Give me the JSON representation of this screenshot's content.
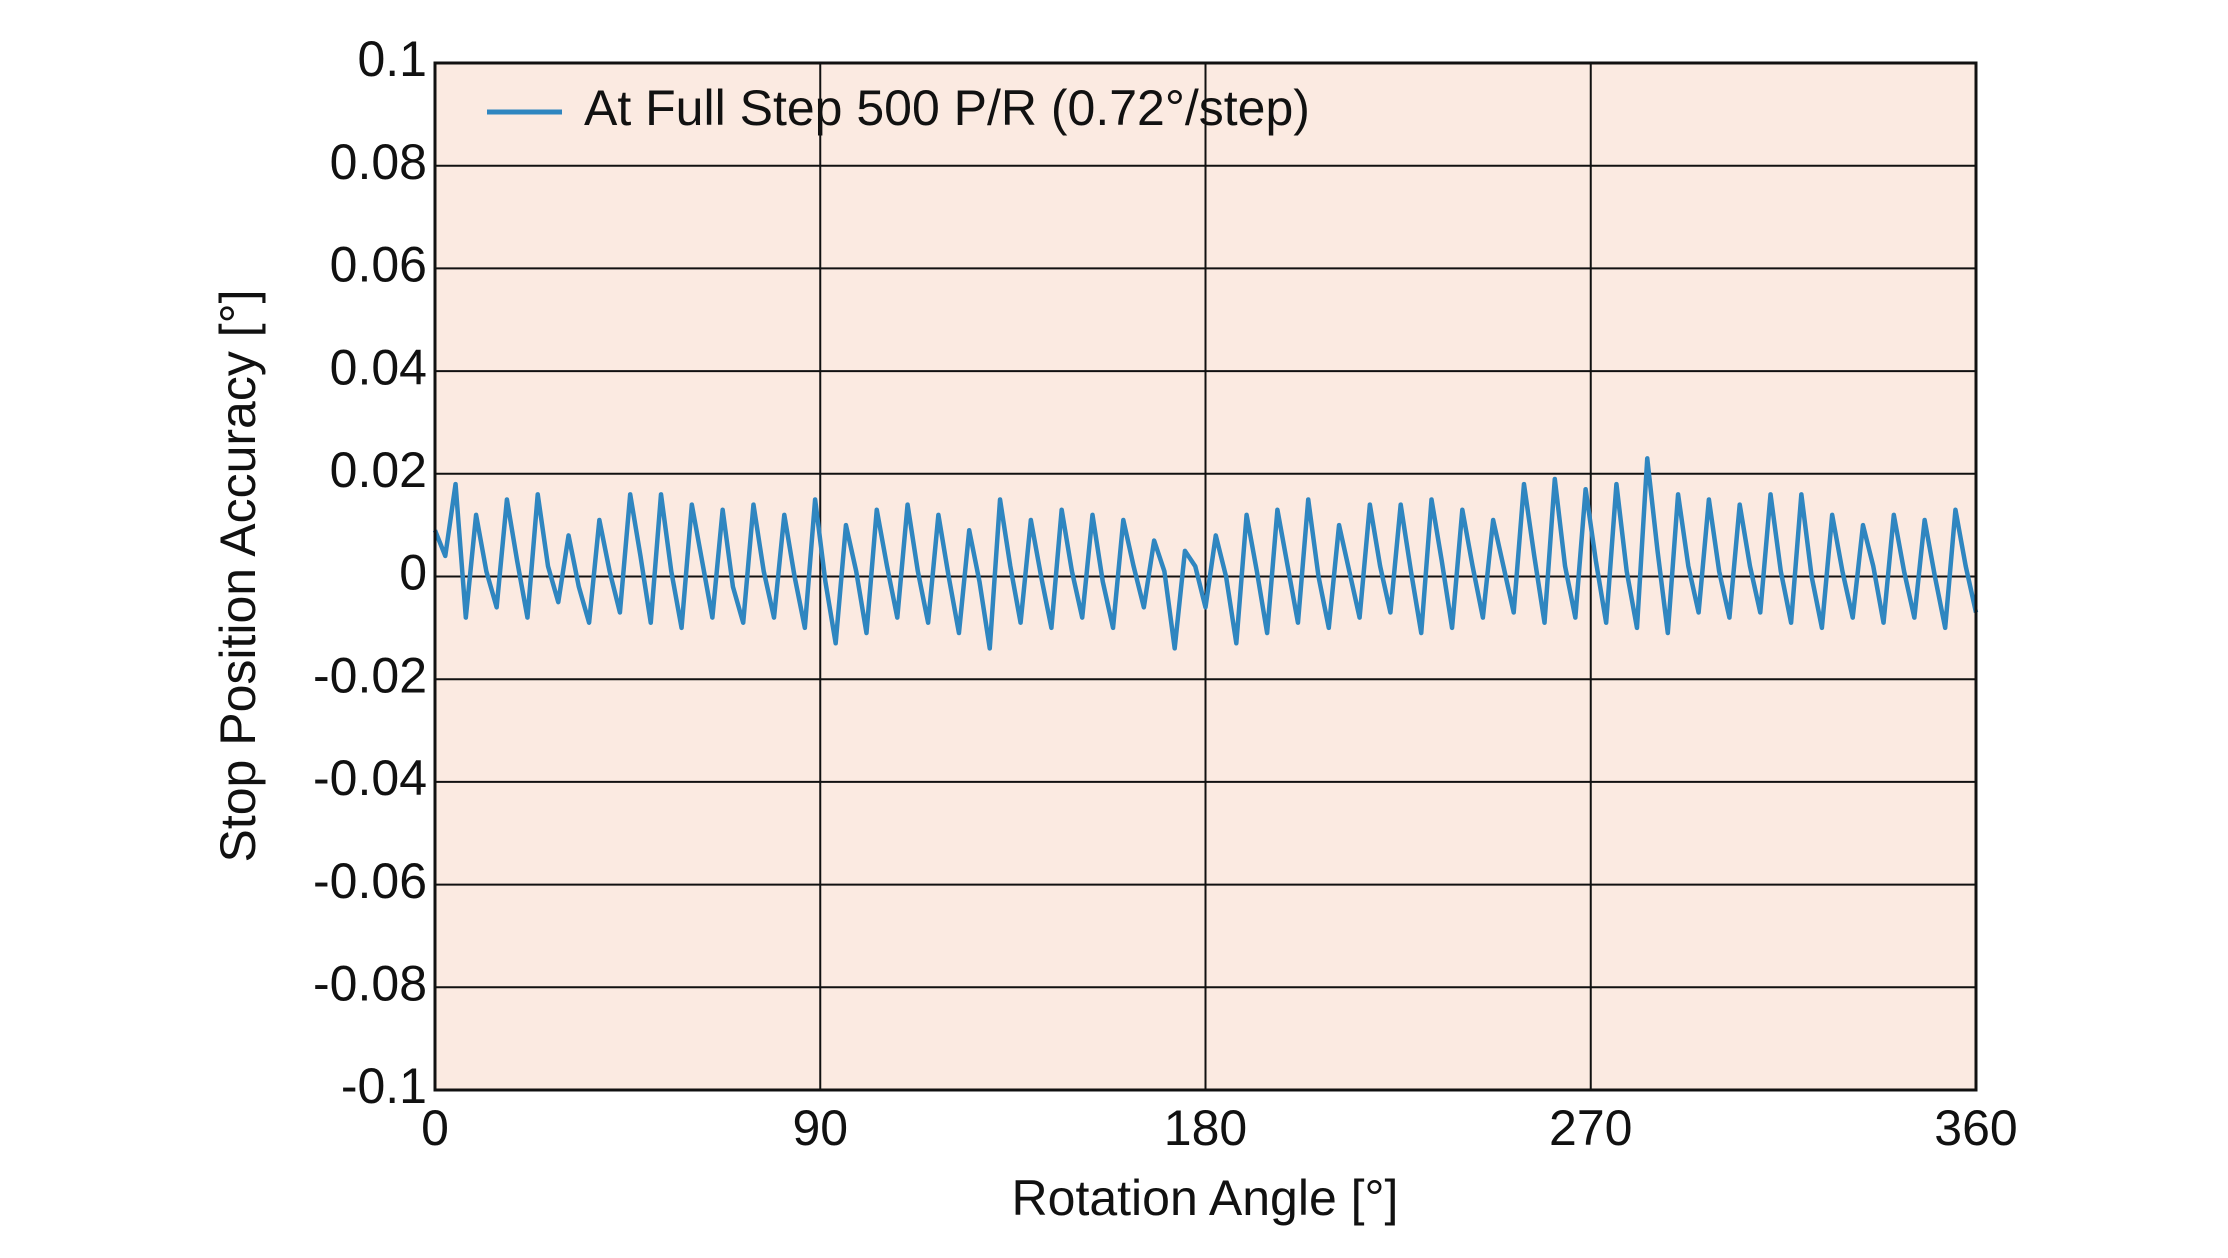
{
  "chart_data": {
    "type": "line",
    "xlabel": "Rotation Angle [°]",
    "ylabel": "Stop Position Accuracy [°]",
    "x": [
      0,
      2.4,
      4.8,
      7.2,
      9.6,
      12,
      14.4,
      16.8,
      19.2,
      21.6,
      24,
      26.4,
      28.8,
      31.2,
      33.6,
      36,
      38.4,
      40.8,
      43.2,
      45.6,
      48,
      50.4,
      52.8,
      55.2,
      57.6,
      60,
      62.4,
      64.8,
      67.2,
      69.6,
      72,
      74.4,
      76.8,
      79.2,
      81.6,
      84,
      86.4,
      88.8,
      91.2,
      93.6,
      96,
      98.4,
      100.8,
      103.2,
      105.6,
      108,
      110.4,
      112.8,
      115.2,
      117.6,
      120,
      122.4,
      124.8,
      127.2,
      129.6,
      132,
      134.4,
      136.8,
      139.2,
      141.6,
      144,
      146.4,
      148.8,
      151.2,
      153.6,
      156,
      158.4,
      160.8,
      163.2,
      165.6,
      168,
      170.4,
      172.8,
      175.2,
      177.6,
      180,
      182.4,
      184.8,
      187.2,
      189.6,
      192,
      194.4,
      196.8,
      199.2,
      201.6,
      204,
      206.4,
      208.8,
      211.2,
      213.6,
      216,
      218.4,
      220.8,
      223.2,
      225.6,
      228,
      230.4,
      232.8,
      235.2,
      237.6,
      240,
      242.4,
      244.8,
      247.2,
      249.6,
      252,
      254.4,
      256.8,
      259.2,
      261.6,
      264,
      266.4,
      268.8,
      271.2,
      273.6,
      276,
      278.4,
      280.8,
      283.2,
      285.6,
      288,
      290.4,
      292.8,
      295.2,
      297.6,
      300,
      302.4,
      304.8,
      307.2,
      309.6,
      312,
      314.4,
      316.8,
      319.2,
      321.6,
      324,
      326.4,
      328.8,
      331.2,
      333.6,
      336,
      338.4,
      340.8,
      343.2,
      345.6,
      348,
      350.4,
      352.8,
      355.2,
      357.6,
      360
    ],
    "series": [
      {
        "name": "At Full Step 500 P/R (0.72°/step)",
        "color": "#2f86c0",
        "values": [
          0.009,
          0.004,
          0.018,
          -0.008,
          0.012,
          0.001,
          -0.006,
          0.015,
          0.003,
          -0.008,
          0.016,
          0.002,
          -0.005,
          0.008,
          -0.002,
          -0.009,
          0.011,
          0.001,
          -0.007,
          0.016,
          0.004,
          -0.009,
          0.016,
          0.001,
          -0.01,
          0.014,
          0.003,
          -0.008,
          0.013,
          -0.002,
          -0.009,
          0.014,
          0.001,
          -0.008,
          0.012,
          0,
          -0.01,
          0.015,
          -0.001,
          -0.013,
          0.01,
          0.001,
          -0.011,
          0.013,
          0.002,
          -0.008,
          0.014,
          0.001,
          -0.009,
          0.012,
          0,
          -0.011,
          0.009,
          -0.001,
          -0.014,
          0.015,
          0.002,
          -0.009,
          0.011,
          0,
          -0.01,
          0.013,
          0.001,
          -0.008,
          0.012,
          -0.001,
          -0.01,
          0.011,
          0.002,
          -0.006,
          0.007,
          0.001,
          -0.014,
          0.005,
          0.002,
          -0.006,
          0.008,
          0,
          -0.013,
          0.012,
          0.001,
          -0.011,
          0.013,
          0.002,
          -0.009,
          0.015,
          0,
          -0.01,
          0.01,
          0.001,
          -0.008,
          0.014,
          0.002,
          -0.007,
          0.014,
          0.001,
          -0.011,
          0.015,
          0.003,
          -0.01,
          0.013,
          0.002,
          -0.008,
          0.011,
          0.002,
          -0.007,
          0.018,
          0.004,
          -0.009,
          0.019,
          0.002,
          -0.008,
          0.017,
          0.003,
          -0.009,
          0.018,
          0.001,
          -0.01,
          0.023,
          0.005,
          -0.011,
          0.016,
          0.002,
          -0.007,
          0.015,
          0.001,
          -0.008,
          0.014,
          0.002,
          -0.007,
          0.016,
          0.001,
          -0.009,
          0.016,
          0,
          -0.01,
          0.012,
          0.001,
          -0.008,
          0.01,
          0.002,
          -0.009,
          0.012,
          0.001,
          -0.008,
          0.011,
          0,
          -0.01,
          0.013,
          0.002,
          -0.007
        ]
      }
    ],
    "xlim": [
      0,
      360
    ],
    "xticks": [
      0,
      90,
      180,
      270,
      360
    ],
    "ylim": [
      -0.1,
      0.1
    ],
    "yticks": [
      -0.1,
      -0.08,
      -0.06,
      -0.04,
      -0.02,
      0,
      0.02,
      0.04,
      0.06,
      0.08,
      0.1
    ],
    "grid": true,
    "legend": "upper left",
    "background": "#fbeae1"
  }
}
